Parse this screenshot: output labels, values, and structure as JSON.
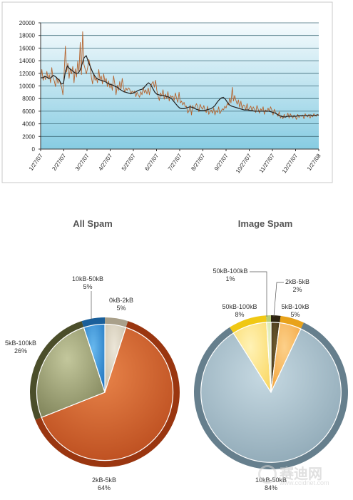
{
  "chart_data": [
    {
      "type": "line",
      "ylim": [
        0,
        20000
      ],
      "yticks": [
        "0",
        "2000",
        "4000",
        "6000",
        "8000",
        "10000",
        "12000",
        "14000",
        "16000",
        "18000",
        "20000"
      ],
      "xticks": [
        "1/27/07",
        "2/27/07",
        "3/27/07",
        "4/27/07",
        "5/27/07",
        "6/27/07",
        "7/27/07",
        "8/27/07",
        "9/27/07",
        "10/27/07",
        "11/27/07",
        "12/27/07",
        "1/27/08"
      ],
      "series": [
        {
          "role": "daily",
          "color": "#b5642f",
          "values": [
            11200,
            12600,
            10900,
            11600,
            11000,
            12300,
            11100,
            11800,
            10500,
            12900,
            11300,
            10800,
            9900,
            11400,
            10400,
            11100,
            10300,
            9800,
            8600,
            11900,
            16300,
            12200,
            13600,
            11200,
            12800,
            11900,
            13100,
            10500,
            12700,
            11400,
            13900,
            12100,
            16900,
            11800,
            18600,
            13400,
            12700,
            11900,
            12900,
            14200,
            13300,
            11400,
            10300,
            12000,
            10900,
            11300,
            10500,
            12600,
            11000,
            11600,
            10300,
            11900,
            10700,
            11200,
            9900,
            10800,
            9700,
            10400,
            9300,
            11600,
            10300,
            8600,
            10100,
            9300,
            10700,
            9500,
            11200,
            9800,
            9000,
            9700,
            9300,
            9700,
            9500,
            8700,
            9200,
            8900,
            9200,
            8300,
            9000,
            8600,
            8200,
            9100,
            8600,
            9800,
            8900,
            9400,
            8700,
            9700,
            8600,
            9900,
            10400,
            10700,
            9800,
            10900,
            9300,
            8400,
            7700,
            8900,
            8400,
            9400,
            7900,
            8700,
            8000,
            9100,
            7600,
            8500,
            8200,
            8400,
            7700,
            8900,
            8000,
            7400,
            9000,
            7300,
            7600,
            7000,
            7400,
            6700,
            6800,
            5700,
            6100,
            7000,
            5400,
            6900,
            6400,
            6700,
            7200,
            6800,
            5900,
            7100,
            6600,
            6300,
            6900,
            6100,
            5800,
            6800,
            5500,
            5900,
            6200,
            5700,
            6500,
            5400,
            6100,
            5800,
            6700,
            5600,
            6000,
            6400,
            6200,
            6800,
            6500,
            7200,
            7000,
            8100,
            7300,
            9800,
            7600,
            8500,
            7700,
            7100,
            7800,
            6600,
            7600,
            6400,
            7000,
            6900,
            6200,
            7200,
            6100,
            6500,
            6800,
            6000,
            6700,
            6300,
            5800,
            6900,
            6300,
            5700,
            6400,
            6100,
            6700,
            5500,
            6200,
            5900,
            6500,
            6000,
            6700,
            6200,
            5400,
            6300,
            5800,
            5600,
            5200,
            5900,
            4900,
            5300,
            4800,
            5500,
            5000,
            5200,
            5700,
            4900,
            5600,
            5200,
            4900,
            5400,
            5100,
            4700,
            5500,
            5000,
            5300,
            5200,
            5400,
            4800,
            5600,
            5300,
            5100,
            5500,
            4900,
            5400,
            5100,
            5600,
            5300,
            5200,
            5500,
            5300
          ]
        },
        {
          "role": "average",
          "color": "#222222",
          "values": [
            11300,
            11300,
            11500,
            11400,
            11200,
            11300,
            11700,
            11500,
            11200,
            10900,
            10300,
            10400,
            12400,
            13200,
            12700,
            12500,
            12200,
            12000,
            12000,
            12500,
            13500,
            14500,
            14800,
            13800,
            13000,
            12200,
            11600,
            11200,
            11000,
            10900,
            10800,
            10700,
            10500,
            10300,
            10200,
            10100,
            9900,
            9800,
            9500,
            9300,
            9100,
            9000,
            8900,
            8800,
            8800,
            8900,
            9100,
            9300,
            9400,
            9500,
            9800,
            10200,
            10500,
            10200,
            9600,
            9000,
            8700,
            8600,
            8500,
            8500,
            8400,
            8300,
            8200,
            8000,
            7600,
            7200,
            6800,
            6500,
            6400,
            6400,
            6500,
            6600,
            6700,
            6600,
            6500,
            6300,
            6200,
            6100,
            6100,
            6100,
            6200,
            6300,
            6400,
            6600,
            6900,
            7400,
            7800,
            8100,
            8200,
            7900,
            7400,
            7000,
            6800,
            6700,
            6600,
            6500,
            6400,
            6300,
            6200,
            6200,
            6200,
            6100,
            6100,
            6000,
            6000,
            6000,
            6000,
            6000,
            6000,
            6000,
            6000,
            5900,
            5800,
            5700,
            5500,
            5300,
            5200,
            5100,
            5100,
            5200,
            5200,
            5200,
            5200,
            5200,
            5300,
            5300,
            5300,
            5300,
            5300,
            5300,
            5400,
            5300,
            5300,
            5400,
            5400
          ]
        }
      ]
    },
    {
      "type": "pie",
      "title": "All Spam",
      "slices": [
        {
          "label": "0kB-2kB",
          "pct_text": "5%",
          "value": 5,
          "color": "#d6cebc",
          "dark": "#a9a08a"
        },
        {
          "label": "2kB-5kB",
          "pct_text": "64%",
          "value": 64,
          "color": "#c8582a",
          "dark": "#9a3610"
        },
        {
          "label": "5kB-100kB",
          "pct_text": "26%",
          "value": 26,
          "color": "#a3a77a",
          "dark": "#4b4e2a"
        },
        {
          "label": "10kB-50kB",
          "pct_text": "5%",
          "value": 5,
          "color": "#2f8fd6",
          "dark": "#1a5f9a"
        }
      ]
    },
    {
      "type": "pie",
      "title": "Image Spam",
      "slices": [
        {
          "label": "2kB-5kB",
          "pct_text": "2%",
          "value": 2,
          "color": "#4a3a1c",
          "dark": "#2e2410"
        },
        {
          "label": "5kB-10kB",
          "pct_text": "5%",
          "value": 5,
          "color": "#f5b24a",
          "dark": "#e8a21a"
        },
        {
          "label": "10kB-50kB",
          "pct_text": "84%",
          "value": 84,
          "color": "#9fb6c2",
          "dark": "#667f8d"
        },
        {
          "label": "50kB-100kB",
          "pct_text": "8%",
          "value": 8,
          "color": "#fbe07a",
          "dark": "#f0c814"
        },
        {
          "label": "50kB-100kB",
          "pct_text": "1%",
          "value": 1,
          "color": "#d8e8a6",
          "dark": "#b8cc76"
        }
      ]
    }
  ],
  "watermark": {
    "text": "赛迪网",
    "url": "www.ccidnet.com"
  }
}
